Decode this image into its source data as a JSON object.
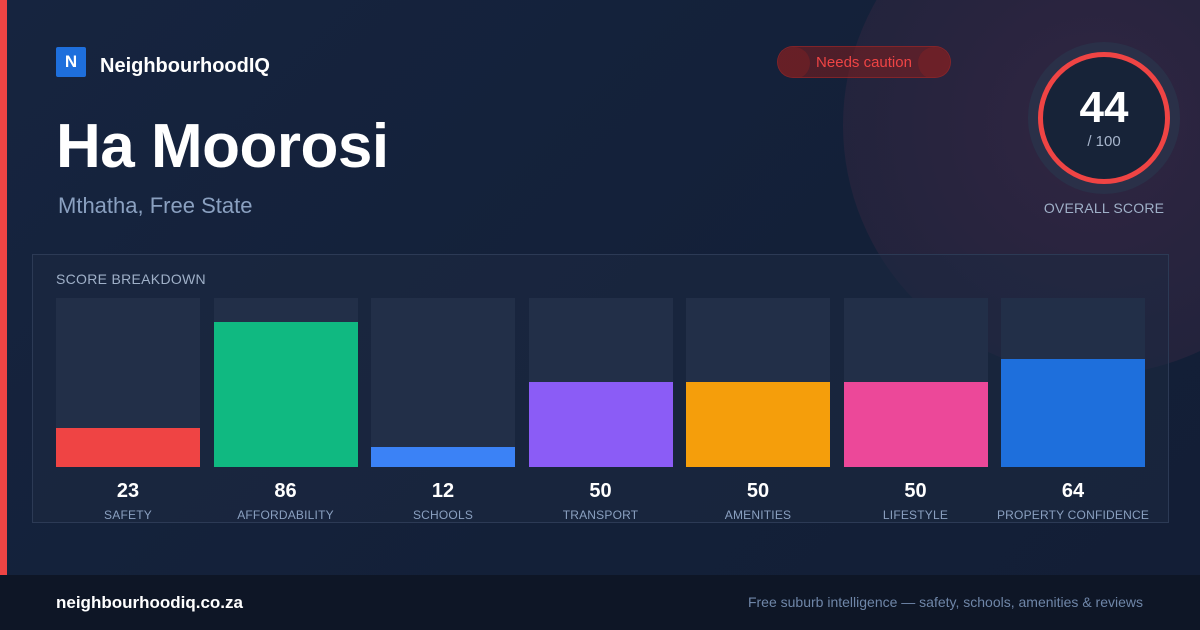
{
  "brand": {
    "logo_letter": "N",
    "name": "NeighbourhoodIQ"
  },
  "status": {
    "label": "Needs caution",
    "color": "#ef4444"
  },
  "suburb": {
    "name": "Ha Moorosi",
    "location": "Mthatha, Free State"
  },
  "overall": {
    "score": "44",
    "max": "/ 100",
    "label": "OVERALL SCORE",
    "ring_color": "#ef4444"
  },
  "breakdown": {
    "title": "SCORE BREAKDOWN",
    "items": [
      {
        "label": "SAFETY",
        "value": "23",
        "color": "#ef4444"
      },
      {
        "label": "AFFORDABILITY",
        "value": "86",
        "color": "#10b981"
      },
      {
        "label": "SCHOOLS",
        "value": "12",
        "color": "#3b82f6"
      },
      {
        "label": "TRANSPORT",
        "value": "50",
        "color": "#8b5cf6"
      },
      {
        "label": "AMENITIES",
        "value": "50",
        "color": "#f59e0b"
      },
      {
        "label": "LIFESTYLE",
        "value": "50",
        "color": "#ec4899"
      },
      {
        "label": "PROPERTY CONFIDENCE",
        "value": "64",
        "color": "#1e6fdc"
      }
    ]
  },
  "chart_data": {
    "type": "bar",
    "categories": [
      "SAFETY",
      "AFFORDABILITY",
      "SCHOOLS",
      "TRANSPORT",
      "AMENITIES",
      "LIFESTYLE",
      "PROPERTY CONFIDENCE"
    ],
    "values": [
      23,
      86,
      12,
      50,
      50,
      50,
      64
    ],
    "title": "SCORE BREAKDOWN",
    "ylim": [
      0,
      100
    ]
  },
  "footer": {
    "url": "neighbourhoodiq.co.za",
    "tagline": "Free suburb intelligence — safety, schools, amenities & reviews"
  }
}
